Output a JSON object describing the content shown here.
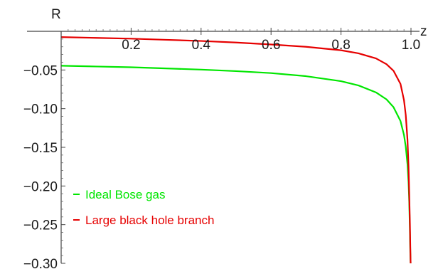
{
  "chart_data": {
    "type": "line",
    "title": "",
    "xlabel": "z",
    "ylabel": "R",
    "xlim": [
      0,
      1.0
    ],
    "ylim": [
      -0.3,
      0.0
    ],
    "x_ticks": [
      {
        "value": 0.2,
        "label": "0.2"
      },
      {
        "value": 0.4,
        "label": "0.4"
      },
      {
        "value": 0.6,
        "label": "0.6"
      },
      {
        "value": 0.8,
        "label": "0.8"
      },
      {
        "value": 1.0,
        "label": "1.0"
      }
    ],
    "y_ticks": [
      {
        "value": -0.05,
        "label": "−0.05"
      },
      {
        "value": -0.1,
        "label": "−0.10"
      },
      {
        "value": -0.15,
        "label": "−0.15"
      },
      {
        "value": -0.2,
        "label": "−0.20"
      },
      {
        "value": -0.25,
        "label": "−0.25"
      },
      {
        "value": -0.3,
        "label": "−0.30"
      }
    ],
    "grid": false,
    "legend_position": "bottom-left",
    "series": [
      {
        "name": "Ideal Bose gas",
        "color": "#00e600",
        "x": [
          0.0,
          0.1,
          0.2,
          0.3,
          0.4,
          0.5,
          0.6,
          0.7,
          0.8,
          0.85,
          0.9,
          0.93,
          0.95,
          0.97,
          0.98,
          0.985,
          0.99,
          0.993,
          0.995,
          0.997,
          0.998,
          0.999
        ],
        "y": [
          -0.0445,
          -0.0455,
          -0.0465,
          -0.048,
          -0.0495,
          -0.0515,
          -0.054,
          -0.058,
          -0.0645,
          -0.07,
          -0.079,
          -0.088,
          -0.098,
          -0.116,
          -0.134,
          -0.149,
          -0.172,
          -0.195,
          -0.22,
          -0.26,
          -0.285,
          -0.3
        ]
      },
      {
        "name": "Large black hole branch",
        "color": "#e60000",
        "x": [
          0.0,
          0.1,
          0.2,
          0.3,
          0.4,
          0.5,
          0.6,
          0.7,
          0.8,
          0.85,
          0.9,
          0.93,
          0.95,
          0.97,
          0.98,
          0.985,
          0.99,
          0.993,
          0.995,
          0.997,
          0.998,
          0.999
        ],
        "y": [
          -0.0075,
          -0.0085,
          -0.0095,
          -0.011,
          -0.0125,
          -0.0145,
          -0.017,
          -0.02,
          -0.0245,
          -0.0285,
          -0.035,
          -0.0425,
          -0.051,
          -0.068,
          -0.089,
          -0.108,
          -0.14,
          -0.175,
          -0.21,
          -0.25,
          -0.278,
          -0.3
        ]
      }
    ]
  }
}
